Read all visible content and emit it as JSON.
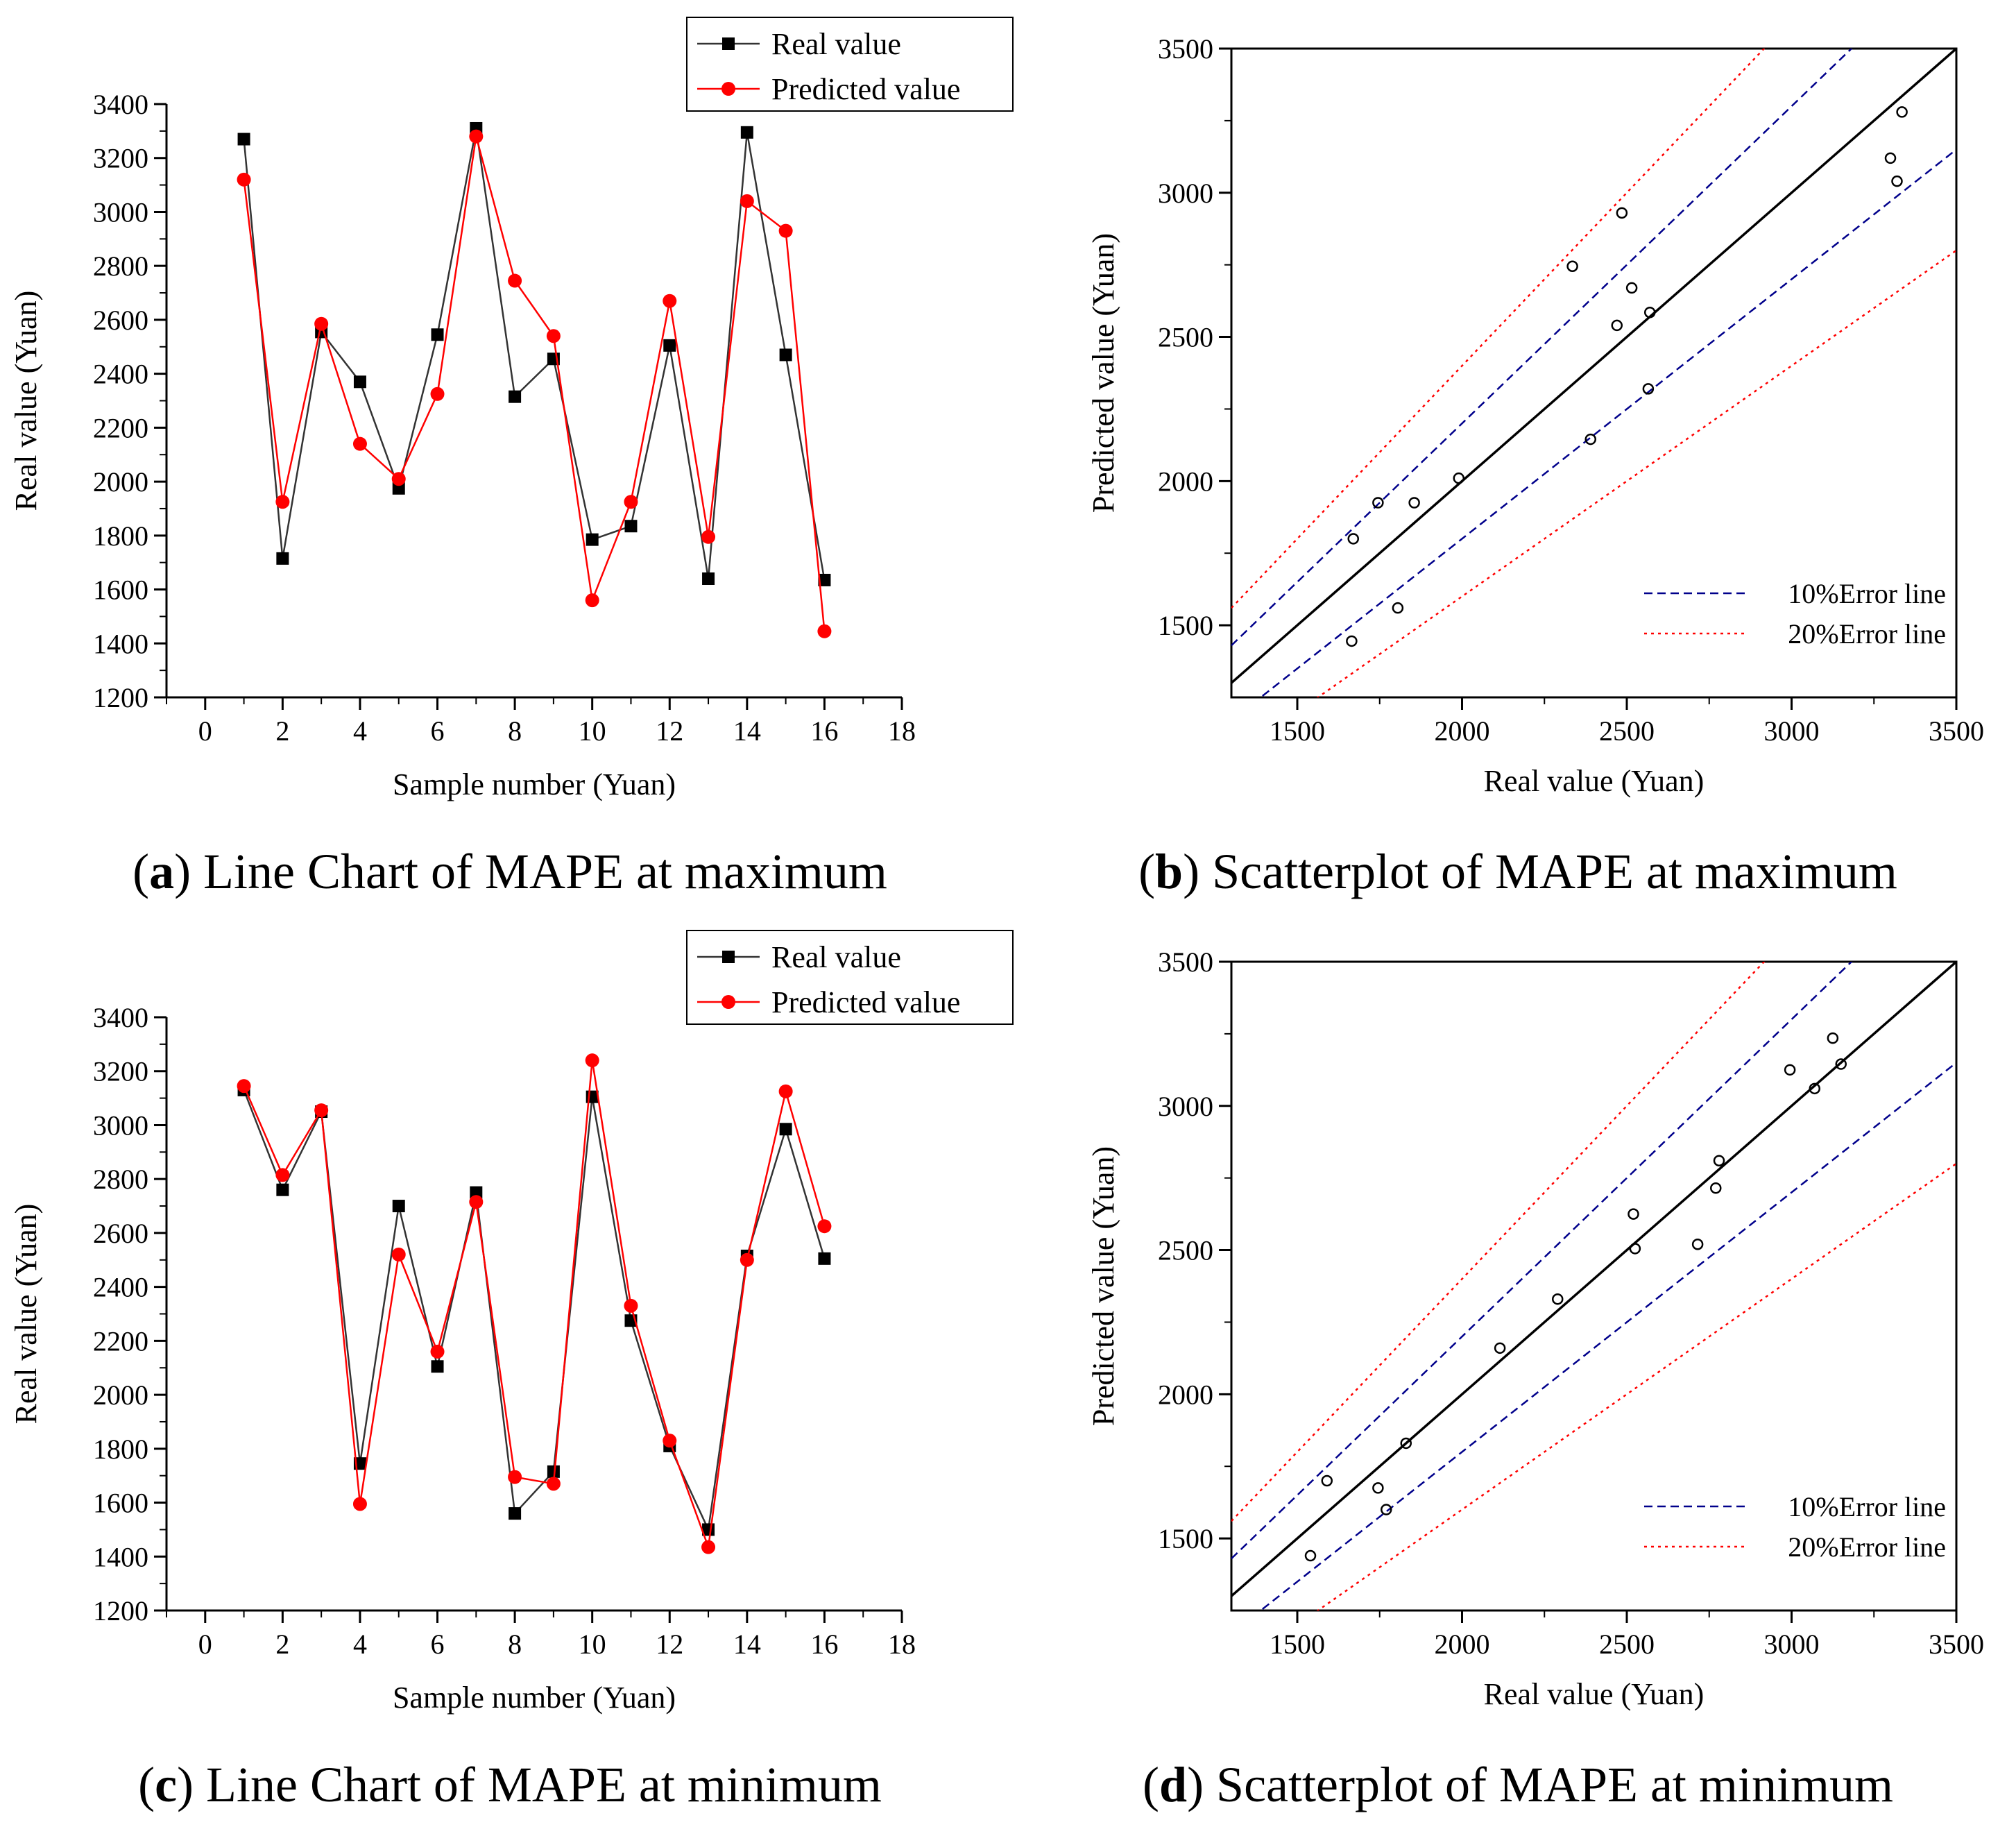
{
  "chart_data": [
    {
      "type": "line",
      "panel_label": "a",
      "caption": "Line Chart of MAPE at maximum",
      "xlabel": "Sample number (Yuan)",
      "ylabel": "Real value (Yuan)",
      "xlim": [
        -1,
        18
      ],
      "ylim": [
        1200,
        3400
      ],
      "xticks": [
        0,
        2,
        4,
        6,
        8,
        10,
        12,
        14,
        16,
        18
      ],
      "yticks": [
        1200,
        1400,
        1600,
        1800,
        2000,
        2200,
        2400,
        2600,
        2800,
        3000,
        3200,
        3400
      ],
      "legend_position": "top-right",
      "x": [
        1,
        2,
        3,
        4,
        5,
        6,
        7,
        8,
        9,
        10,
        11,
        12,
        13,
        14,
        15,
        16
      ],
      "series": [
        {
          "name": "Real value",
          "color": "#333333",
          "marker": "square",
          "values": [
            3270,
            1715,
            2555,
            2370,
            1975,
            2545,
            3310,
            2315,
            2455,
            1785,
            1835,
            2505,
            1640,
            3295,
            2470,
            1635
          ]
        },
        {
          "name": "Predicted value",
          "color": "#ff0000",
          "marker": "circle",
          "values": [
            3120,
            1925,
            2585,
            2140,
            2010,
            2325,
            3280,
            2745,
            2540,
            1560,
            1925,
            2670,
            1795,
            3040,
            2930,
            1445
          ]
        }
      ]
    },
    {
      "type": "scatter",
      "panel_label": "b",
      "caption": "Scatterplot of MAPE at maximum",
      "xlabel": "Real value (Yuan)",
      "ylabel": "Predicted value (Yuan)",
      "xlim": [
        1300,
        3500
      ],
      "ylim": [
        1250,
        3500
      ],
      "xticks": [
        1500,
        2000,
        2500,
        3000,
        3500
      ],
      "yticks": [
        1500,
        2000,
        2500,
        3000,
        3500
      ],
      "legend_position": "bottom-right",
      "reference_lines": [
        {
          "name": "10%Error line",
          "color": "#00008b",
          "style": "dashed"
        },
        {
          "name": "20%Error line",
          "color": "#ff0000",
          "style": "dotted"
        }
      ],
      "points": [
        [
          1670,
          1800
        ],
        [
          1665,
          1445
        ],
        [
          1745,
          1925
        ],
        [
          1855,
          1925
        ],
        [
          1805,
          1560
        ],
        [
          1990,
          2010
        ],
        [
          2335,
          2745
        ],
        [
          2390,
          2145
        ],
        [
          2470,
          2540
        ],
        [
          2485,
          2930
        ],
        [
          2515,
          2670
        ],
        [
          2565,
          2320
        ],
        [
          2570,
          2585
        ],
        [
          3300,
          3120
        ],
        [
          3320,
          3040
        ],
        [
          3335,
          3280
        ]
      ]
    },
    {
      "type": "line",
      "panel_label": "c",
      "caption": "Line Chart of MAPE at minimum",
      "xlabel": "Sample number (Yuan)",
      "ylabel": "Real value (Yuan)",
      "xlim": [
        -1,
        18
      ],
      "ylim": [
        1200,
        3400
      ],
      "xticks": [
        0,
        2,
        4,
        6,
        8,
        10,
        12,
        14,
        16,
        18
      ],
      "yticks": [
        1200,
        1400,
        1600,
        1800,
        2000,
        2200,
        2400,
        2600,
        2800,
        3000,
        3200,
        3400
      ],
      "legend_position": "top-right",
      "x": [
        1,
        2,
        3,
        4,
        5,
        6,
        7,
        8,
        9,
        10,
        11,
        12,
        13,
        14,
        15,
        16
      ],
      "series": [
        {
          "name": "Real value",
          "color": "#333333",
          "marker": "square",
          "values": [
            3130,
            2760,
            3050,
            1745,
            2700,
            2105,
            2750,
            1560,
            1715,
            3105,
            2275,
            1810,
            1500,
            2515,
            2985,
            2505
          ]
        },
        {
          "name": "Predicted value",
          "color": "#ff0000",
          "marker": "circle",
          "values": [
            3145,
            2815,
            3055,
            1595,
            2520,
            2160,
            2715,
            1695,
            1670,
            3240,
            2330,
            1830,
            1435,
            2500,
            3125,
            2625
          ]
        }
      ]
    },
    {
      "type": "scatter",
      "panel_label": "d",
      "caption": "Scatterplot of MAPE at minimum",
      "xlabel": "Real value (Yuan)",
      "ylabel": "Predicted value (Yuan)",
      "xlim": [
        1300,
        3500
      ],
      "ylim": [
        1250,
        3500
      ],
      "xticks": [
        1500,
        2000,
        2500,
        3000,
        3500
      ],
      "yticks": [
        1500,
        2000,
        2500,
        3000,
        3500
      ],
      "legend_position": "bottom-right",
      "reference_lines": [
        {
          "name": "10%Error line",
          "color": "#00008b",
          "style": "dashed"
        },
        {
          "name": "20%Error line",
          "color": "#ff0000",
          "style": "dotted"
        }
      ],
      "points": [
        [
          1540,
          1440
        ],
        [
          1590,
          1700
        ],
        [
          1745,
          1675
        ],
        [
          1770,
          1600
        ],
        [
          1830,
          1830
        ],
        [
          2115,
          2160
        ],
        [
          2290,
          2330
        ],
        [
          2520,
          2625
        ],
        [
          2525,
          2505
        ],
        [
          2715,
          2520
        ],
        [
          2770,
          2715
        ],
        [
          2780,
          2810
        ],
        [
          2995,
          3125
        ],
        [
          3070,
          3060
        ],
        [
          3125,
          3235
        ],
        [
          3150,
          3145
        ]
      ]
    }
  ]
}
